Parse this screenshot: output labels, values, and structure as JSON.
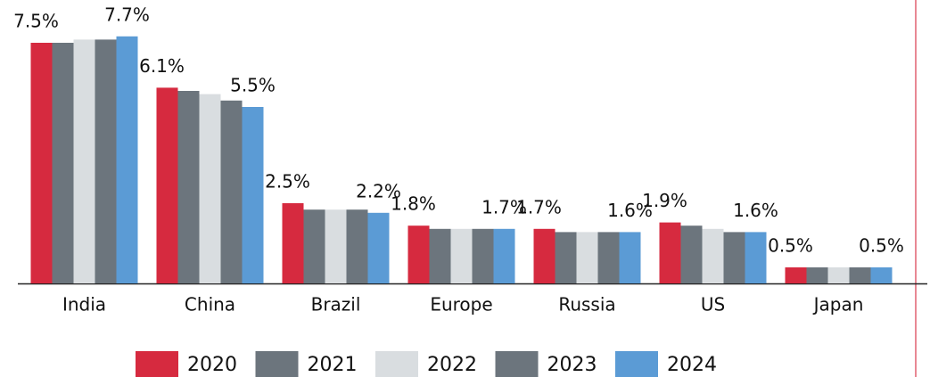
{
  "chart_data": {
    "type": "bar",
    "categories": [
      "India",
      "China",
      "Brazil",
      "Europe",
      "Russia",
      "US",
      "Japan"
    ],
    "series": [
      {
        "name": "2020",
        "color": "#d62a3f",
        "values": [
          7.5,
          6.1,
          2.5,
          1.8,
          1.7,
          1.9,
          0.5
        ],
        "value_labels": [
          "7.5%",
          "6.1%",
          "2.5%",
          "1.8%",
          "1.7%",
          "1.9%",
          "0.5%"
        ]
      },
      {
        "name": "2021",
        "color": "#6c757d",
        "values": [
          7.5,
          6.0,
          2.3,
          1.7,
          1.6,
          1.8,
          0.5
        ]
      },
      {
        "name": "2022",
        "color": "#d9dde0",
        "values": [
          7.6,
          5.9,
          2.3,
          1.7,
          1.6,
          1.7,
          0.5
        ]
      },
      {
        "name": "2023",
        "color": "#6c757d",
        "values": [
          7.6,
          5.7,
          2.3,
          1.7,
          1.6,
          1.6,
          0.5
        ]
      },
      {
        "name": "2024",
        "color": "#5b9bd5",
        "values": [
          7.7,
          5.5,
          2.2,
          1.7,
          1.6,
          1.6,
          0.5
        ],
        "value_labels": [
          "7.7%",
          "5.5%",
          "2.2%",
          "1.7%",
          "1.6%",
          "1.6%",
          "0.5%"
        ]
      }
    ],
    "ylim": [
      0,
      8.5
    ]
  }
}
